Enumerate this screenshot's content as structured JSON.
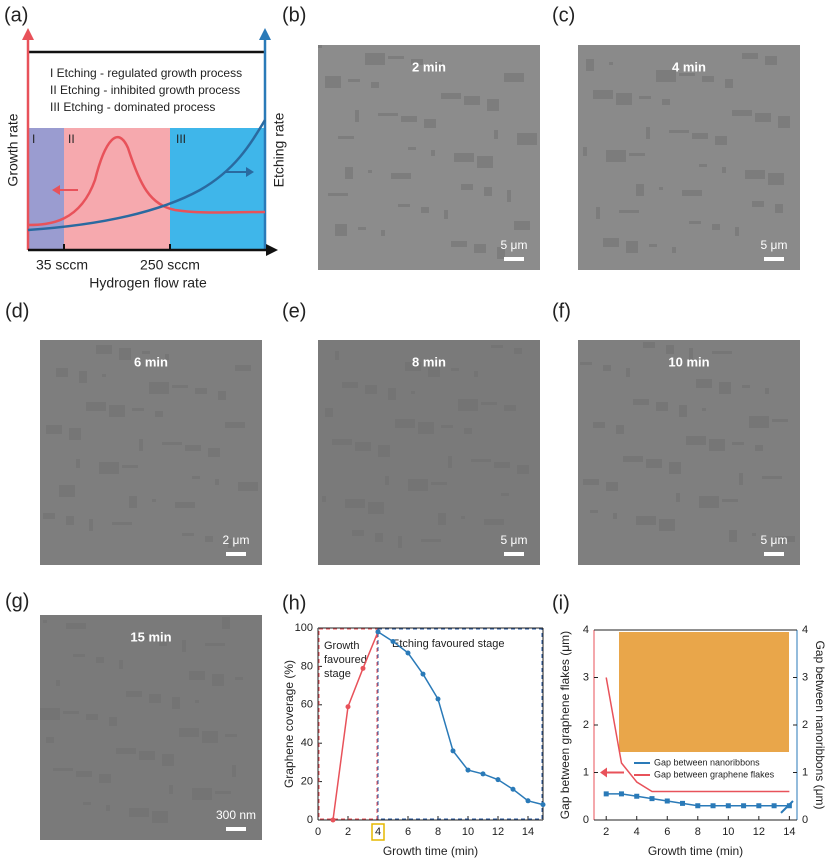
{
  "schematic": {
    "label": "(a)",
    "legend": [
      "I   Etching - regulated growth process",
      "II  Etching - inhibited  growth process",
      "III Etching - dominated process"
    ],
    "regions": [
      "I",
      "II",
      "III"
    ],
    "left_axis": "Growth rate",
    "right_axis": "Etching rate",
    "x_marks": [
      "35 sccm",
      "250 sccm"
    ],
    "x_axis": "Hydrogen flow rate"
  },
  "images": [
    {
      "label": "(b)",
      "time": "2 min",
      "scale": "5 μm"
    },
    {
      "label": "(c)",
      "time": "4 min",
      "scale": "5 μm"
    },
    {
      "label": "(d)",
      "time": "6 min",
      "scale": "2 μm"
    },
    {
      "label": "(e)",
      "time": "8 min",
      "scale": "5 μm"
    },
    {
      "label": "(f)",
      "time": "10 min",
      "scale": "5 μm"
    },
    {
      "label": "(g)",
      "time": "15 min",
      "scale": "300 nm"
    }
  ],
  "chart_data": [
    {
      "type": "line",
      "label": "(h)",
      "xlabel": "Growth time (min)",
      "ylabel": "Graphene coverage (%)",
      "annotations": [
        "Growth favoured stage",
        "Etching favoured stage"
      ],
      "xlim": [
        0,
        15
      ],
      "ylim": [
        0,
        100
      ],
      "xticks": [
        0,
        2,
        4,
        6,
        8,
        10,
        12,
        14
      ],
      "yticks": [
        0,
        20,
        40,
        60,
        80,
        100
      ],
      "series": [
        {
          "color": "#e8525a",
          "marker": "circle",
          "x": [
            1,
            2,
            3,
            4
          ],
          "values": [
            0,
            59,
            79,
            98
          ]
        },
        {
          "color": "#2a7ab8",
          "marker": "circle",
          "x": [
            4,
            5,
            6,
            7,
            8,
            9,
            10,
            11,
            12,
            13,
            14,
            15
          ],
          "values": [
            98,
            93,
            87,
            76,
            63,
            36,
            26,
            24,
            21,
            16,
            10,
            8
          ]
        }
      ]
    },
    {
      "type": "line",
      "label": "(i)",
      "xlabel": "Growth time (min)",
      "ylabel": "Gap between graphene flakes (μm)",
      "y2label": "Gap between nanoribbons (μm)",
      "xlim": [
        1.2,
        14.5
      ],
      "ylim": [
        0,
        4
      ],
      "y2lim": [
        0,
        4
      ],
      "xticks": [
        2,
        4,
        6,
        8,
        10,
        12,
        14
      ],
      "yticks": [
        0,
        1,
        2,
        3,
        4
      ],
      "y2ticks": [
        0,
        1,
        2,
        3,
        4
      ],
      "series": [
        {
          "name": "Gap between nanoribbons",
          "color": "#2a7ab8",
          "marker": "square",
          "axis": "y2",
          "x": [
            2,
            3,
            4,
            5,
            6,
            7,
            8,
            9,
            10,
            11,
            12,
            13,
            14
          ],
          "values": [
            0.55,
            0.55,
            0.5,
            0.45,
            0.4,
            0.35,
            0.3,
            0.3,
            0.3,
            0.3,
            0.3,
            0.3,
            0.3
          ]
        },
        {
          "name": "Gap between graphene flakes",
          "color": "#e8525a",
          "marker": "none",
          "x": [
            2,
            3,
            4,
            5,
            6,
            7,
            8,
            9,
            10,
            11,
            12,
            13,
            14
          ],
          "values": [
            3.0,
            1.2,
            0.8,
            0.6,
            0.6,
            0.6,
            0.6,
            0.6,
            0.6,
            0.6,
            0.6,
            0.6,
            0.6
          ]
        }
      ]
    }
  ]
}
